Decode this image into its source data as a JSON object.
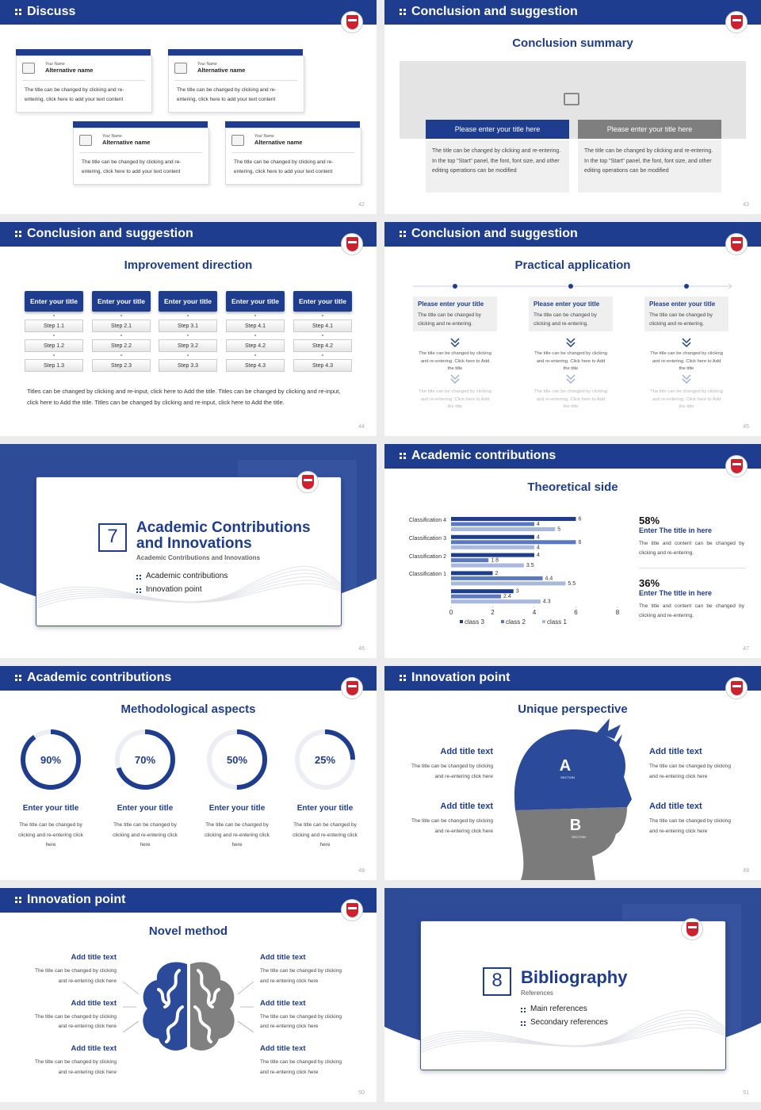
{
  "slides": [
    {
      "header": "Discuss",
      "page": "42",
      "cards": [
        {
          "label": "Your Name",
          "name": "Alternative name",
          "text": "The title can be changed by clicking and re-entering, click here to add your text content"
        },
        {
          "label": "Your Name",
          "name": "Alternative name",
          "text": "The title can be changed by clicking and re-entering, click here to add your text content"
        },
        {
          "label": "Your Name",
          "name": "Alternative name",
          "text": "The title can be changed by clicking and re-entering, click here to add your text content"
        },
        {
          "label": "Your Name",
          "name": "Alternative name",
          "text": "The title can be changed by clicking and re-entering, click here to add your text content"
        }
      ]
    },
    {
      "header": "Conclusion and suggestion",
      "page": "43",
      "subtitle": "Conclusion summary",
      "boxes": [
        {
          "title": "Please enter your title here",
          "text": "The title can be changed by clicking and re-entering. In the top \"Start\" panel, the font, font size, and other editing operations can be modified"
        },
        {
          "title": "Please enter your title here",
          "text": "The title can be changed by clicking and re-entering. In the top \"Start\" panel, the font, font size, and other editing operations can be modified"
        }
      ]
    },
    {
      "header": "Conclusion and suggestion",
      "page": "44",
      "subtitle": "Improvement direction",
      "columns": [
        {
          "title": "Enter your title",
          "steps": [
            "Step 1.1",
            "Step 1.2",
            "Step 1.3"
          ]
        },
        {
          "title": "Enter your title",
          "steps": [
            "Step 2.1",
            "Step 2.2",
            "Step 2.3"
          ]
        },
        {
          "title": "Enter your title",
          "steps": [
            "Step 3.1",
            "Step 3.2",
            "Step 3.3"
          ]
        },
        {
          "title": "Enter your title",
          "steps": [
            "Step 4.1",
            "Step 4.2",
            "Step 4.3"
          ]
        },
        {
          "title": "Enter your title",
          "steps": [
            "Step 4.1",
            "Step 4.2",
            "Step 4.3"
          ]
        }
      ],
      "paragraph": "Titles can be changed by clicking and re-input, click here to Add the title. Titles can be changed by clicking and re-input, click here to Add the title. Titles can be changed by clicking and re-input, click here to Add the title."
    },
    {
      "header": "Conclusion and suggestion",
      "page": "45",
      "subtitle": "Practical application",
      "columns": [
        {
          "title": "Please enter your title",
          "text": "The title can be changed by clicking and re-entering.",
          "details": [
            "The title can be changed by clicking and re-entering. Click here to Add the title",
            "The title can be changed by clicking and re-entering. Click here to Add the title"
          ]
        },
        {
          "title": "Please enter your title",
          "text": "The title can be changed by clicking and re-entering.",
          "details": [
            "The title can be changed by clicking and re-entering. Click here to Add the title",
            "The title can be changed by clicking and re-entering. Click here to Add the title"
          ]
        },
        {
          "title": "Please enter your title",
          "text": "The title can be changed by clicking and re-entering.",
          "details": [
            "The title can be changed by clicking and re-entering. Click here to Add the title",
            "The title can be changed by clicking and re-entering. Click here to Add the title"
          ]
        }
      ]
    },
    {
      "page": "46",
      "number": "7",
      "title": "Academic Contributions and Innovations",
      "subtitle": "Academic Contributions and Innovations",
      "items": [
        "Academic contributions",
        "Innovation point"
      ]
    },
    {
      "header": "Academic contributions",
      "page": "47",
      "subtitle": "Theoretical side",
      "stats": [
        {
          "value": "58%",
          "title": "Enter The title in here",
          "text": "The title and content can be changed by clicking and re-entering."
        },
        {
          "value": "36%",
          "title": "Enter The title in here",
          "text": "The title and content can be changed by clicking and re-entering."
        }
      ]
    },
    {
      "header": "Academic contributions",
      "page": "48",
      "subtitle": "Methodological aspects",
      "rings": [
        {
          "percent": {
            "value": 90,
            "label": "90%"
          },
          "title": "Enter your title",
          "text": "The title can be changed by clicking and re-entering click here"
        },
        {
          "percent": {
            "value": 70,
            "label": "70%"
          },
          "title": "Enter your title",
          "text": "The title can be changed by clicking and re-entering click here"
        },
        {
          "percent": {
            "value": 50,
            "label": "50%"
          },
          "title": "Enter your title",
          "text": "The title can be changed by clicking and re-entering click here"
        },
        {
          "percent": {
            "value": 25,
            "label": "25%"
          },
          "title": "Enter your title",
          "text": "The title can be changed by clicking and re-entering click here"
        }
      ]
    },
    {
      "header": "Innovation point",
      "page": "49",
      "subtitle": "Unique perspective",
      "head": {
        "top": "A",
        "top_caption": "SECTION",
        "bottom": "B",
        "bottom_caption": "SECTION"
      },
      "items": [
        {
          "title": "Add title text",
          "text": "The title can be changed by clicking and re-entering click here"
        },
        {
          "title": "Add title text",
          "text": "The title can be changed by clicking and re-entering click here"
        },
        {
          "title": "Add title text",
          "text": "The title can be changed by clicking and re-entering click here"
        },
        {
          "title": "Add title text",
          "text": "The title can be changed by clicking and re-entering click here"
        }
      ]
    },
    {
      "header": "Innovation point",
      "page": "50",
      "subtitle": "Novel method",
      "items": [
        {
          "title": "Add title text",
          "text": "The title can be changed by clicking and re-entering click here"
        },
        {
          "title": "Add title text",
          "text": "The title can be changed by clicking and re-entering click here"
        },
        {
          "title": "Add title text",
          "text": "The title can be changed by clicking and re-entering click here"
        },
        {
          "title": "Add title text",
          "text": "The title can be changed by clicking and re-entering click here"
        },
        {
          "title": "Add title text",
          "text": "The title can be changed by clicking and re-entering click here"
        },
        {
          "title": "Add title text",
          "text": "The title can be changed by clicking and re-entering click here"
        }
      ]
    },
    {
      "page": "51",
      "number": "8",
      "title": "Bibliography",
      "subtitle": "References",
      "items": [
        "Main references",
        "Secondary references"
      ]
    }
  ],
  "chart_data": {
    "type": "bar",
    "orientation": "horizontal",
    "categories": [
      "Classification 4",
      "Classification 3",
      "Classification 2",
      "Classification 1",
      null
    ],
    "series": [
      {
        "name": "class 3",
        "color": "#1f3d8f",
        "values": [
          6,
          4,
          4,
          2,
          3
        ]
      },
      {
        "name": "class 2",
        "color": "#5b78c2",
        "values": [
          4,
          6,
          1.8,
          4.4,
          2.4
        ]
      },
      {
        "name": "class 1",
        "color": "#a9b8dd",
        "values": [
          5,
          4,
          3.5,
          5.5,
          4.3
        ]
      }
    ],
    "xlim": [
      0,
      8
    ],
    "xticks": [
      0,
      2,
      4,
      6,
      8
    ]
  }
}
